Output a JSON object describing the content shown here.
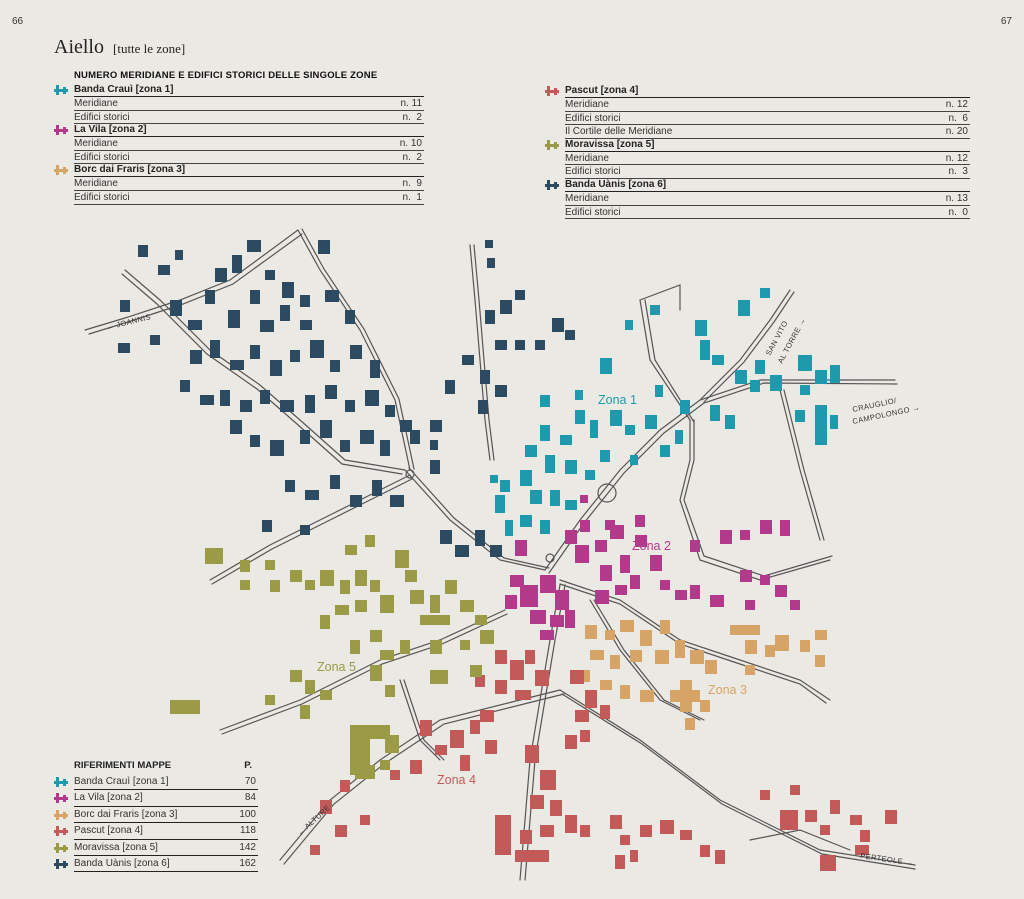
{
  "page_left": "66",
  "page_right": "67",
  "title": "Aiello",
  "subtitle": "[tutte le zone]",
  "colors": {
    "zona1": "#1f9aac",
    "zona2": "#b33a8a",
    "zona3": "#d6a466",
    "zona4": "#c25a59",
    "zona5": "#9a9a47",
    "zona6": "#2c4a60",
    "road": "#555555",
    "background": "#ebe9e3"
  },
  "stats": {
    "header": "NUMERO MERIDIANE E EDIFICI STORICI DELLE SINGOLE ZONE",
    "left": [
      {
        "zone": "Banda Crauì [zona 1]",
        "icon": "zone1-icon",
        "rows": [
          {
            "label": "Meridiane",
            "value": "n. 11"
          },
          {
            "label": "Edifici storici",
            "value": "n.  2"
          }
        ]
      },
      {
        "zone": "La Vila [zona 2]",
        "icon": "zone2-icon",
        "rows": [
          {
            "label": "Meridiane",
            "value": "n. 10"
          },
          {
            "label": "Edifici storici",
            "value": "n.  2"
          }
        ]
      },
      {
        "zone": "Borc dai Fraris [zona 3]",
        "icon": "zone3-icon",
        "rows": [
          {
            "label": "Meridiane",
            "value": "n.  9"
          },
          {
            "label": "Edifici storici",
            "value": "n.  1"
          }
        ]
      }
    ],
    "right": [
      {
        "zone": "Pascut [zona 4]",
        "icon": "zone4-icon",
        "rows": [
          {
            "label": "Meridiane",
            "value": "n. 12"
          },
          {
            "label": "Edifici storici",
            "value": "n.  6"
          },
          {
            "label": "Il Cortile delle Meridiane",
            "value": "n. 20"
          }
        ]
      },
      {
        "zone": "Moravissa [zona 5]",
        "icon": "zone5-icon",
        "rows": [
          {
            "label": "Meridiane",
            "value": "n. 12"
          },
          {
            "label": "Edifici storici",
            "value": "n.  3"
          }
        ]
      },
      {
        "zone": "Banda Uànis [zona 6]",
        "icon": "zone6-icon",
        "rows": [
          {
            "label": "Meridiane",
            "value": "n. 13"
          },
          {
            "label": "Edifici storici",
            "value": "n.  0"
          }
        ]
      }
    ]
  },
  "references": {
    "header": "RIFERIMENTI MAPPE",
    "page_header": "P.",
    "rows": [
      {
        "label": "Banda Crauì [zona 1]",
        "page": "70"
      },
      {
        "label": "La Vila [zona 2]",
        "page": "84"
      },
      {
        "label": "Borc dai Fraris [zona 3]",
        "page": "100"
      },
      {
        "label": "Pascut [zona 4]",
        "page": "118"
      },
      {
        "label": "Moravissa [zona 5]",
        "page": "142"
      },
      {
        "label": "Banda Uànis [zona 6]",
        "page": "162"
      }
    ]
  },
  "map": {
    "zone_labels": {
      "z1": "Zona 1",
      "z2": "Zona 2",
      "z3": "Zona 3",
      "z4": "Zona 4",
      "z5": "Zona 5"
    },
    "road_labels": {
      "joannis": "← JOANNIS",
      "san_vito_1": "SAN VITO",
      "san_vito_2": "AL TORRE →",
      "crauglio_1": "CRAUGLIO/",
      "crauglio_2": "CAMPOLONGO →",
      "alture": "← ALTURE",
      "perteole": "PERTEOLE →"
    }
  }
}
